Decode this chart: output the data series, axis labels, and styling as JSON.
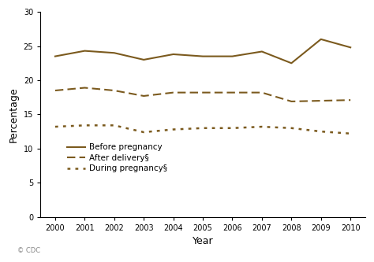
{
  "years": [
    2000,
    2001,
    2002,
    2003,
    2004,
    2005,
    2006,
    2007,
    2008,
    2009,
    2010
  ],
  "before_pregnancy": [
    23.5,
    24.3,
    24.0,
    23.0,
    23.8,
    23.5,
    23.5,
    24.2,
    22.5,
    26.0,
    24.8
  ],
  "after_delivery": [
    18.5,
    18.9,
    18.5,
    17.7,
    18.2,
    18.2,
    18.2,
    18.2,
    16.9,
    17.0,
    17.1
  ],
  "during_pregnancy": [
    13.2,
    13.4,
    13.4,
    12.4,
    12.8,
    13.0,
    13.0,
    13.2,
    13.0,
    12.5,
    12.2
  ],
  "line_color": "#7B5A1E",
  "ylim": [
    0,
    30
  ],
  "yticks": [
    0,
    5,
    10,
    15,
    20,
    25,
    30
  ],
  "xlim": [
    1999.5,
    2010.5
  ],
  "xticks": [
    2000,
    2001,
    2002,
    2003,
    2004,
    2005,
    2006,
    2007,
    2008,
    2009,
    2010
  ],
  "ylabel": "Percentage",
  "xlabel": "Year",
  "legend_labels": [
    "Before pregnancy",
    "After delivery§",
    "During pregnancy§"
  ],
  "background_color": "#ffffff",
  "watermark": "© CDC"
}
